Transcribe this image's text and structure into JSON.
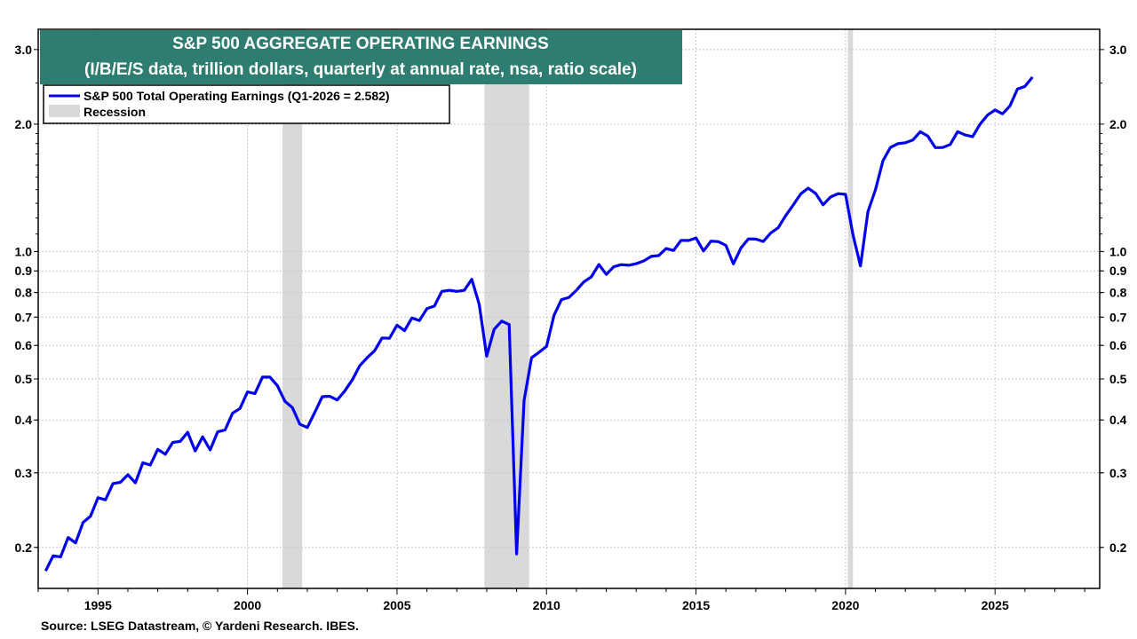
{
  "chart_data": {
    "type": "line",
    "title": "S&P 500 AGGREGATE OPERATING EARNINGS",
    "subtitle": "(I/B/E/S data, trillion dollars, quarterly at annual rate, nsa, ratio scale)",
    "xlabel": "",
    "ylabel": "",
    "y_scale": "log",
    "xlim": [
      1993.0,
      2028.5
    ],
    "ylim": [
      0.16,
      3.35
    ],
    "x_ticks": [
      "1995",
      "2000",
      "2005",
      "2010",
      "2015",
      "2020",
      "2025"
    ],
    "y_ticks": [
      "0.2",
      "0.3",
      "0.4",
      "0.5",
      "0.6",
      "0.7",
      "0.8",
      "0.9",
      "1.0",
      "2.0",
      "3.0"
    ],
    "legend_position": "top-left",
    "grid": true,
    "series": [
      {
        "name": "S&P 500 Total Operating Earnings (Q1-2026 = 2.582)",
        "color": "#0000ee",
        "x": [
          1993.25,
          1993.5,
          1993.75,
          1994.0,
          1994.25,
          1994.5,
          1994.75,
          1995.0,
          1995.25,
          1995.5,
          1995.75,
          1996.0,
          1996.25,
          1996.5,
          1996.75,
          1997.0,
          1997.25,
          1997.5,
          1997.75,
          1998.0,
          1998.25,
          1998.5,
          1998.75,
          1999.0,
          1999.25,
          1999.5,
          1999.75,
          2000.0,
          2000.25,
          2000.5,
          2000.75,
          2001.0,
          2001.25,
          2001.5,
          2001.75,
          2002.0,
          2002.25,
          2002.5,
          2002.75,
          2003.0,
          2003.25,
          2003.5,
          2003.75,
          2004.0,
          2004.25,
          2004.5,
          2004.75,
          2005.0,
          2005.25,
          2005.5,
          2005.75,
          2006.0,
          2006.25,
          2006.5,
          2006.75,
          2007.0,
          2007.25,
          2007.5,
          2007.75,
          2008.0,
          2008.25,
          2008.5,
          2008.75,
          2009.0,
          2009.25,
          2009.5,
          2009.75,
          2010.0,
          2010.25,
          2010.5,
          2010.75,
          2011.0,
          2011.25,
          2011.5,
          2011.75,
          2012.0,
          2012.25,
          2012.5,
          2012.75,
          2013.0,
          2013.25,
          2013.5,
          2013.75,
          2014.0,
          2014.25,
          2014.5,
          2014.75,
          2015.0,
          2015.25,
          2015.5,
          2015.75,
          2016.0,
          2016.25,
          2016.5,
          2016.75,
          2017.0,
          2017.25,
          2017.5,
          2017.75,
          2018.0,
          2018.25,
          2018.5,
          2018.75,
          2019.0,
          2019.25,
          2019.5,
          2019.75,
          2020.0,
          2020.25,
          2020.5,
          2020.75,
          2021.0,
          2021.25,
          2021.5,
          2021.75,
          2022.0,
          2022.25,
          2022.5,
          2022.75,
          2023.0,
          2023.25,
          2023.5,
          2023.75,
          2024.0,
          2024.25,
          2024.5,
          2024.75,
          2025.0,
          2025.25,
          2025.5,
          2025.75,
          2026.0,
          2026.25
        ],
        "values": [
          0.176,
          0.191,
          0.19,
          0.211,
          0.205,
          0.229,
          0.237,
          0.262,
          0.259,
          0.283,
          0.285,
          0.297,
          0.284,
          0.317,
          0.313,
          0.341,
          0.332,
          0.354,
          0.356,
          0.374,
          0.338,
          0.365,
          0.34,
          0.375,
          0.379,
          0.415,
          0.426,
          0.466,
          0.462,
          0.505,
          0.505,
          0.482,
          0.443,
          0.428,
          0.391,
          0.384,
          0.417,
          0.454,
          0.455,
          0.446,
          0.468,
          0.497,
          0.537,
          0.561,
          0.583,
          0.625,
          0.624,
          0.67,
          0.65,
          0.697,
          0.687,
          0.733,
          0.743,
          0.805,
          0.81,
          0.805,
          0.81,
          0.86,
          0.75,
          0.566,
          0.655,
          0.685,
          0.672,
          0.193,
          0.445,
          0.561,
          0.578,
          0.597,
          0.707,
          0.77,
          0.779,
          0.81,
          0.848,
          0.871,
          0.932,
          0.883,
          0.921,
          0.931,
          0.928,
          0.936,
          0.95,
          0.974,
          0.978,
          1.016,
          1.006,
          1.063,
          1.062,
          1.076,
          1.003,
          1.058,
          1.055,
          1.034,
          0.935,
          1.019,
          1.071,
          1.07,
          1.056,
          1.106,
          1.138,
          1.216,
          1.288,
          1.368,
          1.412,
          1.372,
          1.289,
          1.345,
          1.37,
          1.365,
          1.094,
          0.925,
          1.242,
          1.398,
          1.639,
          1.761,
          1.798,
          1.807,
          1.834,
          1.919,
          1.874,
          1.76,
          1.761,
          1.79,
          1.92,
          1.885,
          1.868,
          2.0,
          2.101,
          2.16,
          2.115,
          2.208,
          2.42,
          2.455,
          2.582
        ]
      },
      {
        "name": "Recession",
        "color": "#d9d9d9",
        "periods": [
          [
            2001.17,
            2001.83
          ],
          [
            2007.92,
            2009.42
          ],
          [
            2020.08,
            2020.25
          ]
        ]
      }
    ],
    "source": "Source: LSEG Datastream, © Yardeni Research. IBES."
  }
}
